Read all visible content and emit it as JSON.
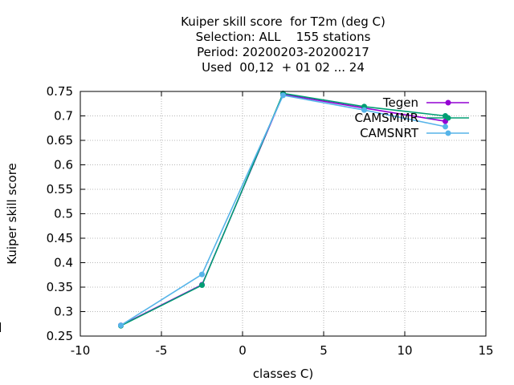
{
  "chart_data": {
    "type": "line",
    "title_lines": [
      "Kuiper skill score  for T2m (deg C)",
      "Selection: ALL    155 stations",
      "Period: 20200203-20200217",
      "Used  00,12  + 01 02 ... 24"
    ],
    "xlabel": "classes C)",
    "ylabel": "Kuiper skill score",
    "xlim": [
      -10,
      15
    ],
    "ylim": [
      0.25,
      0.75
    ],
    "xticks": [
      -10,
      -5,
      0,
      5,
      10,
      15
    ],
    "yticks": [
      0.25,
      0.3,
      0.35,
      0.4,
      0.45,
      0.5,
      0.55,
      0.6,
      0.65,
      0.7,
      0.75
    ],
    "xtick_labels": [
      "-10",
      "-5",
      "0",
      "5",
      "10",
      "15"
    ],
    "ytick_labels": [
      "0.25",
      "0.3",
      "0.35",
      "0.4",
      "0.45",
      "0.5",
      "0.55",
      "0.6",
      "0.65",
      "0.7",
      "0.75"
    ],
    "grid": true,
    "legend_position": "top-right",
    "series": [
      {
        "name": "Tegen",
        "color": "#9400d3",
        "marker": "filled-circle",
        "x": [
          -7.5,
          -2.5,
          2.5,
          7.5,
          12.5
        ],
        "y": [
          0.272,
          0.355,
          0.744,
          0.716,
          0.689
        ]
      },
      {
        "name": "CAMSMMR",
        "color": "#009e73",
        "marker": "filled-circle",
        "x": [
          -7.5,
          -2.5,
          2.5,
          7.5,
          12.5
        ],
        "y": [
          0.271,
          0.354,
          0.746,
          0.719,
          0.7
        ]
      },
      {
        "name": "CAMSNRT",
        "color": "#56b4e9",
        "marker": "filled-circle",
        "x": [
          -7.5,
          -2.5,
          2.5,
          7.5,
          12.5
        ],
        "y": [
          0.272,
          0.376,
          0.742,
          0.712,
          0.678
        ]
      }
    ]
  }
}
